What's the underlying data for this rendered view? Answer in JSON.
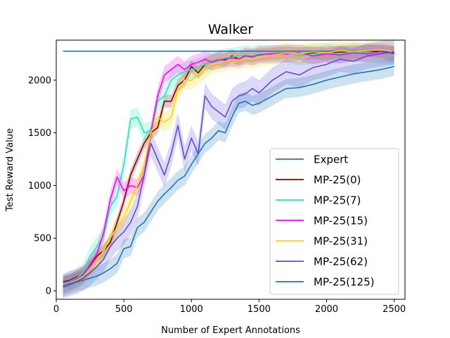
{
  "chart_data": {
    "type": "line",
    "title": "Walker",
    "xlabel": "Number of Expert Annotations",
    "ylabel": "Test Reward Value",
    "xlim": [
      0,
      2580
    ],
    "ylim": [
      -80,
      2380
    ],
    "xticks": [
      0,
      500,
      1000,
      1500,
      2000,
      2500
    ],
    "yticks": [
      0,
      500,
      1000,
      1500,
      2000
    ],
    "legend_position": "lower-right",
    "series": [
      {
        "name": "Expert",
        "color": "#1f77b4",
        "shaded": false,
        "x": [
          50,
          2500
        ],
        "y": [
          2275,
          2275
        ]
      },
      {
        "name": "MP-25(0)",
        "color": "#8b0000",
        "shaded": true,
        "x": [
          50,
          100,
          150,
          200,
          250,
          300,
          350,
          400,
          450,
          500,
          550,
          600,
          650,
          700,
          750,
          800,
          850,
          900,
          950,
          1000,
          1050,
          1100,
          1150,
          1200,
          1250,
          1300,
          1350,
          1400,
          1450,
          1500,
          1600,
          1700,
          1800,
          1900,
          2000,
          2100,
          2200,
          2300,
          2400,
          2500
        ],
        "y": [
          85,
          100,
          130,
          160,
          240,
          330,
          380,
          460,
          650,
          850,
          1100,
          1250,
          1400,
          1500,
          1550,
          1800,
          1800,
          1950,
          2000,
          2130,
          2070,
          2150,
          2180,
          2200,
          2190,
          2230,
          2200,
          2230,
          2230,
          2240,
          2250,
          2260,
          2250,
          2260,
          2250,
          2270,
          2260,
          2280,
          2270,
          2260
        ],
        "band": 60
      },
      {
        "name": "MP-25(7)",
        "color": "#1de9b6",
        "shaded": true,
        "x": [
          50,
          100,
          150,
          200,
          250,
          300,
          350,
          400,
          450,
          500,
          550,
          600,
          650,
          700,
          750,
          800,
          850,
          900,
          950,
          1000,
          1050,
          1100,
          1150,
          1200,
          1250,
          1300,
          1350,
          1400,
          1450,
          1500,
          1600,
          1700,
          1800,
          1900,
          2000,
          2100,
          2200,
          2300,
          2400,
          2500
        ],
        "y": [
          60,
          90,
          120,
          170,
          330,
          420,
          520,
          800,
          900,
          1200,
          1630,
          1650,
          1500,
          1520,
          1800,
          1850,
          2000,
          2050,
          2080,
          2100,
          2120,
          2150,
          2180,
          2200,
          2210,
          2220,
          2230,
          2240,
          2230,
          2250,
          2240,
          2260,
          2230,
          2250,
          2260,
          2250,
          2270,
          2260,
          2250,
          2230
        ],
        "band": 90
      },
      {
        "name": "MP-25(15)",
        "color": "#ff00ff",
        "shaded": true,
        "x": [
          50,
          100,
          150,
          200,
          250,
          300,
          350,
          400,
          450,
          500,
          550,
          600,
          650,
          700,
          750,
          800,
          850,
          900,
          950,
          1000,
          1050,
          1100,
          1150,
          1200,
          1250,
          1300,
          1350,
          1400,
          1450,
          1500,
          1600,
          1700,
          1800,
          1900,
          2000,
          2100,
          2200,
          2300,
          2400,
          2500
        ],
        "y": [
          55,
          80,
          110,
          150,
          250,
          350,
          550,
          870,
          1080,
          950,
          1000,
          980,
          1100,
          1500,
          1850,
          2050,
          2100,
          2150,
          2100,
          2150,
          2170,
          2200,
          2170,
          2190,
          2200,
          2210,
          2200,
          2230,
          2220,
          2240,
          2250,
          2250,
          2260,
          2230,
          2250,
          2240,
          2260,
          2250,
          2270,
          2250
        ],
        "band": 80
      },
      {
        "name": "MP-25(31)",
        "color": "#ffd700",
        "shaded": true,
        "x": [
          50,
          100,
          150,
          200,
          250,
          300,
          350,
          400,
          450,
          500,
          550,
          600,
          650,
          700,
          750,
          800,
          850,
          900,
          950,
          1000,
          1050,
          1100,
          1150,
          1200,
          1250,
          1300,
          1350,
          1400,
          1450,
          1500,
          1600,
          1700,
          1800,
          1900,
          2000,
          2100,
          2200,
          2300,
          2400,
          2500
        ],
        "y": [
          50,
          75,
          100,
          140,
          200,
          280,
          380,
          500,
          600,
          700,
          850,
          1000,
          1200,
          1500,
          1650,
          1600,
          1650,
          1900,
          2000,
          2000,
          2050,
          2100,
          2150,
          2160,
          2180,
          2200,
          2190,
          2210,
          2200,
          2220,
          2240,
          2260,
          2250,
          2270,
          2260,
          2280,
          2270,
          2280,
          2290,
          2270
        ],
        "band": 90
      },
      {
        "name": "MP-25(62)",
        "color": "#5b4ee0",
        "shaded": true,
        "x": [
          50,
          100,
          150,
          200,
          250,
          300,
          350,
          400,
          450,
          500,
          550,
          600,
          650,
          700,
          750,
          800,
          850,
          900,
          950,
          1000,
          1050,
          1100,
          1150,
          1200,
          1250,
          1300,
          1350,
          1400,
          1450,
          1500,
          1600,
          1700,
          1800,
          1900,
          2000,
          2100,
          2200,
          2300,
          2400,
          2500
        ],
        "y": [
          45,
          70,
          90,
          120,
          170,
          230,
          300,
          420,
          500,
          560,
          650,
          800,
          1100,
          1400,
          1250,
          1100,
          1300,
          1570,
          1250,
          1450,
          1300,
          1850,
          1750,
          1700,
          1650,
          1800,
          1850,
          1870,
          1920,
          1880,
          2000,
          2080,
          2050,
          2120,
          2150,
          2200,
          2180,
          2230,
          2250,
          2270
        ],
        "band": 120
      },
      {
        "name": "MP-25(125)",
        "color": "#1f77b4",
        "shaded": true,
        "x": [
          50,
          100,
          150,
          200,
          250,
          300,
          350,
          400,
          450,
          500,
          550,
          600,
          650,
          700,
          750,
          800,
          850,
          900,
          950,
          1000,
          1050,
          1100,
          1150,
          1200,
          1250,
          1300,
          1350,
          1400,
          1450,
          1500,
          1600,
          1700,
          1800,
          1900,
          2000,
          2100,
          2200,
          2300,
          2400,
          2500
        ],
        "y": [
          35,
          60,
          85,
          100,
          120,
          140,
          170,
          210,
          260,
          400,
          420,
          600,
          650,
          750,
          850,
          920,
          980,
          1050,
          1090,
          1200,
          1300,
          1400,
          1450,
          1520,
          1500,
          1650,
          1780,
          1800,
          1760,
          1780,
          1850,
          1920,
          1930,
          1960,
          2000,
          2030,
          2060,
          2080,
          2100,
          2130
        ],
        "band": 90
      }
    ]
  }
}
